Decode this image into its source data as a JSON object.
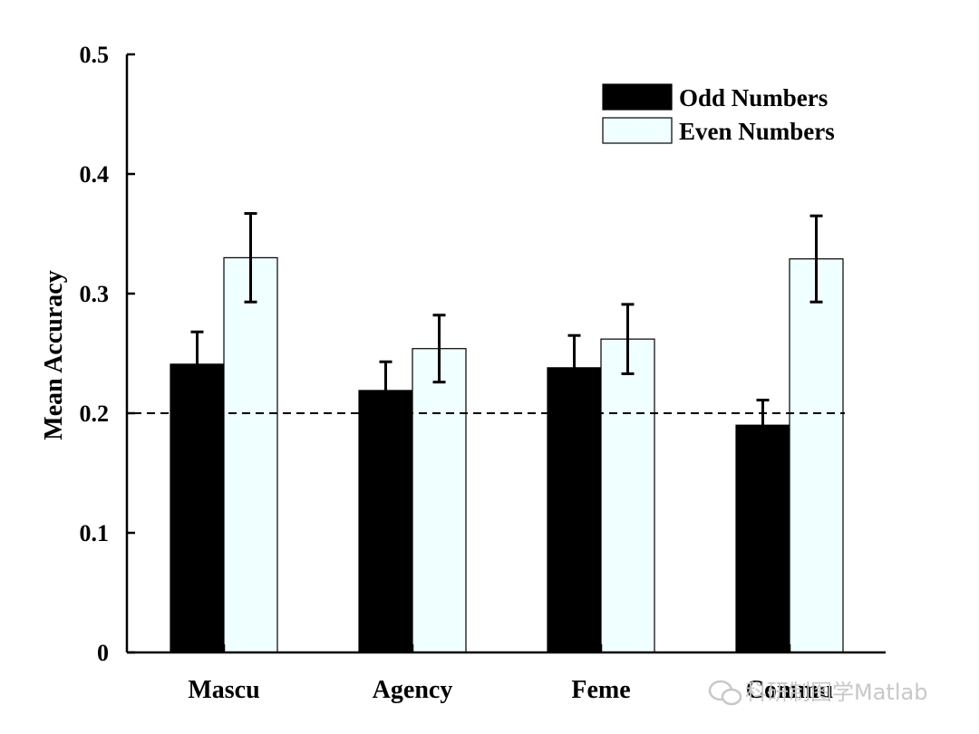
{
  "chart_data": {
    "type": "bar",
    "title": "",
    "xlabel": "",
    "ylabel": "Mean Accuracy",
    "ylim": [
      0,
      0.5
    ],
    "yticks": [
      0,
      0.1,
      0.2,
      0.3,
      0.4,
      0.5
    ],
    "ytick_labels": [
      "0",
      "0.1",
      "0.2",
      "0.3",
      "0.4",
      "0.5"
    ],
    "categories": [
      "Mascu",
      "Agency",
      "Feme",
      "Commu"
    ],
    "series": [
      {
        "name": "Odd Numbers",
        "color": "#000000",
        "values": [
          0.241,
          0.219,
          0.238,
          0.19
        ],
        "errors": [
          0.027,
          0.024,
          0.027,
          0.021
        ]
      },
      {
        "name": "Even Numbers",
        "color": "#f0ffff",
        "values": [
          0.33,
          0.254,
          0.262,
          0.329
        ],
        "errors": [
          0.037,
          0.028,
          0.029,
          0.036
        ]
      }
    ],
    "reference_line": {
      "value": 0.2,
      "style": "dashed"
    },
    "legend_position": "top-right",
    "grid": false
  },
  "watermark": {
    "text": "科研制图学Matlab"
  }
}
